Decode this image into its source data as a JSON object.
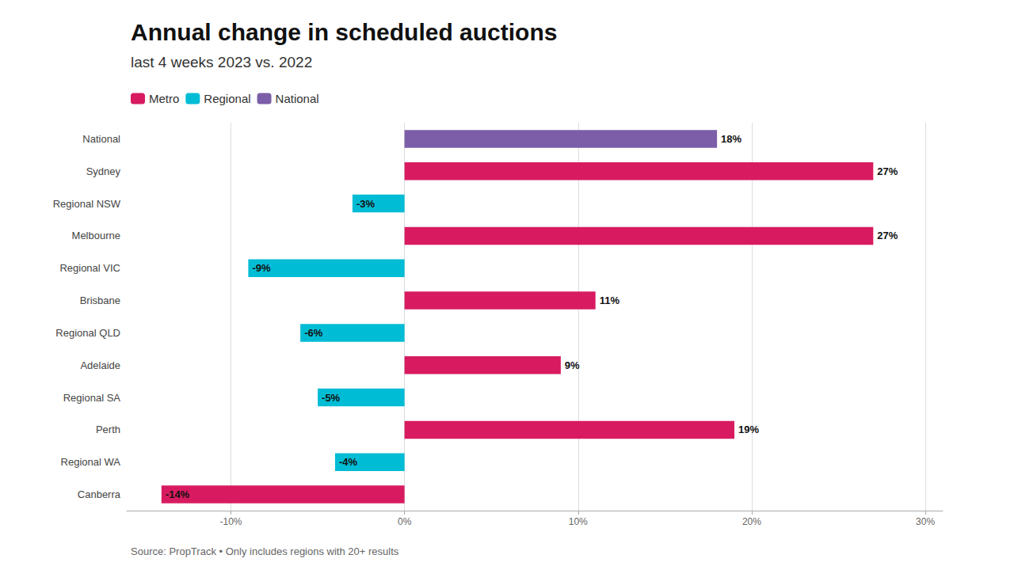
{
  "chart_data": {
    "type": "bar",
    "orientation": "horizontal",
    "title": "Annual change in scheduled auctions",
    "subtitle": "last 4 weeks 2023 vs. 2022",
    "annotation": "Source: PropTrack • Only includes regions with 20+ results",
    "categories": [
      "National",
      "Sydney",
      "Regional NSW",
      "Melbourne",
      "Regional VIC",
      "Brisbane",
      "Regional QLD",
      "Adelaide",
      "Regional SA",
      "Perth",
      "Regional WA",
      "Canberra"
    ],
    "series": [
      {
        "name": "Metro",
        "color": "#D81B60",
        "values": [
          null,
          27,
          null,
          27,
          null,
          11,
          null,
          9,
          null,
          19,
          null,
          -14
        ],
        "value_labels": [
          null,
          "27%",
          null,
          "27%",
          null,
          "11%",
          null,
          "9%",
          null,
          "19%",
          null,
          "-14%"
        ]
      },
      {
        "name": "Regional",
        "color": "#00BCD4",
        "values": [
          null,
          null,
          -3,
          null,
          -9,
          null,
          -6,
          null,
          -5,
          null,
          -4,
          null
        ],
        "value_labels": [
          null,
          null,
          "-3%",
          null,
          "-9%",
          null,
          "-6%",
          null,
          "-5%",
          null,
          "-4%",
          null
        ]
      },
      {
        "name": "National",
        "color": "#7B5EA7",
        "values": [
          18,
          null,
          null,
          null,
          null,
          null,
          null,
          null,
          null,
          null,
          null,
          null
        ],
        "value_labels": [
          "18%",
          null,
          null,
          null,
          null,
          null,
          null,
          null,
          null,
          null,
          null,
          null
        ]
      }
    ],
    "xlim": [
      -16,
      31
    ],
    "xticks": [
      {
        "value": -10,
        "label": "-10%"
      },
      {
        "value": 0,
        "label": "0%"
      },
      {
        "value": 10,
        "label": "10%"
      },
      {
        "value": 20,
        "label": "20%"
      },
      {
        "value": 30,
        "label": "30%"
      }
    ],
    "grid": true,
    "data_labels": true,
    "legend": "upper left"
  }
}
